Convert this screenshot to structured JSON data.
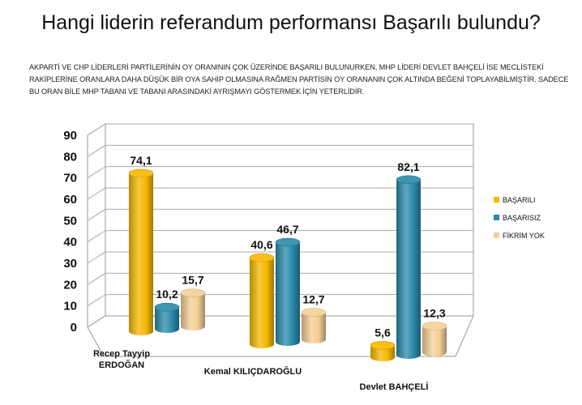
{
  "title": "Hangi liderin referandum performansı Başarılı bulundu?",
  "subtitle": "AKPARTİ VE CHP LİDERLERİ PARTİLERİNİN OY ORANININ ÇOK ÜZERİNDE BAŞARILI BULUNURKEN, MHP LİDERİ DEVLET BAHÇELİ İSE MECLİSTEKİ RAKİPLERİNE ORANLARA DAHA DÜŞÜK BİR OYA SAHİP OLMASINA RAĞMEN PARTİSİN OY ORANANIN ÇOK ALTINDA BEĞENİ TOPLAYABİLMİŞTİR. SADECE BU ORAN BİLE MHP TABANI VE TABANI ARASINDAKİ AYRIŞMAYI GÖSTERMEK İÇİN YETERLİDİR.",
  "colors": {
    "basarili": "#f5b800",
    "basarisiz": "#2a8aab",
    "fikrimyok": "#f4cf95"
  },
  "chart_data": {
    "type": "bar",
    "categories": [
      "Recep Tayyip ERDOĞAN",
      "Kemal KILIÇDAROĞLU",
      "Devlet BAHÇELİ"
    ],
    "category_lines": [
      [
        "Recep Tayyip",
        "ERDOĞAN"
      ],
      [
        "Kemal KILIÇDAROĞLU"
      ],
      [
        "Devlet BAHÇELİ"
      ]
    ],
    "series": [
      {
        "name": "BAŞARILI",
        "values": [
          74.1,
          40.6,
          5.6
        ],
        "labels": [
          "74,1",
          "40,6",
          "5,6"
        ]
      },
      {
        "name": "BAŞARISIZ",
        "values": [
          10.2,
          46.7,
          82.1
        ],
        "labels": [
          "10,2",
          "46,7",
          "82,1"
        ]
      },
      {
        "name": "FİKRİM YOK",
        "values": [
          15.7,
          12.7,
          12.3
        ],
        "labels": [
          "15,7",
          "12,7",
          "12,3"
        ]
      }
    ],
    "ylim": [
      0,
      90
    ],
    "yticks": [
      "0",
      "10",
      "20",
      "30",
      "40",
      "50",
      "60",
      "70",
      "80",
      "90"
    ],
    "legend_position": "right",
    "style": "3d-cylinder"
  }
}
